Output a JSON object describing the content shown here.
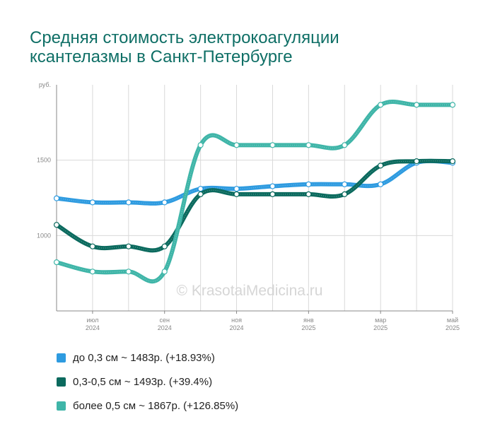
{
  "title_line1": "Средняя стоимость электрокоагуляции",
  "title_line2": "ксантелазмы в Санкт-Петербурге",
  "watermark": "© KrasotaiMedicina.ru",
  "colors": {
    "title": "#0f6f66",
    "series1": "#2e9be0",
    "series2": "#0b6a5e",
    "series3": "#3fb5a8",
    "grid": "#d9d9d9",
    "axis": "#888888"
  },
  "chart_data": {
    "type": "line",
    "title": "Средняя стоимость электрокоагуляции ксантелазмы в Санкт-Петербурге",
    "ylabel": "руб.",
    "xlabel": "",
    "ylim": [
      500,
      2000
    ],
    "grid": true,
    "legend_position": "bottom",
    "x": [
      "2024-06",
      "2024-07",
      "2024-08",
      "2024-09",
      "2024-10",
      "2024-11",
      "2024-12",
      "2025-01",
      "2025-02",
      "2025-03",
      "2025-04",
      "2025-05"
    ],
    "y_ticks": [
      {
        "value": 2000,
        "label": "руб."
      },
      {
        "value": 1500,
        "label": "1500"
      },
      {
        "value": 1000,
        "label": "1000"
      }
    ],
    "x_ticks": [
      {
        "index": 1,
        "month": "июл",
        "year": "2024"
      },
      {
        "index": 3,
        "month": "сен",
        "year": "2024"
      },
      {
        "index": 5,
        "month": "ноя",
        "year": "2024"
      },
      {
        "index": 7,
        "month": "янв",
        "year": "2025"
      },
      {
        "index": 9,
        "month": "мар",
        "year": "2025"
      },
      {
        "index": 11,
        "month": "май",
        "year": "2025"
      }
    ],
    "series": [
      {
        "name": "до 0,3 см",
        "color": "#2e9be0",
        "values": [
          1247,
          1220,
          1220,
          1220,
          1310,
          1310,
          1327,
          1340,
          1340,
          1340,
          1483,
          1483
        ]
      },
      {
        "name": "0,3-0,5 см",
        "color": "#0b6a5e",
        "values": [
          1071,
          928,
          928,
          928,
          1274,
          1274,
          1274,
          1274,
          1274,
          1464,
          1493,
          1493
        ]
      },
      {
        "name": "более 0,5 см",
        "color": "#3fb5a8",
        "values": [
          823,
          761,
          761,
          761,
          1600,
          1600,
          1600,
          1600,
          1600,
          1867,
          1867,
          1867
        ]
      }
    ]
  },
  "legend": [
    {
      "label": "до 0,3 см ~ 1483р. (+18.93%)",
      "color": "#2e9be0"
    },
    {
      "label": "0,3-0,5 см ~ 1493р. (+39.4%)",
      "color": "#0b6a5e"
    },
    {
      "label": "более 0,5 см ~ 1867р. (+126.85%)",
      "color": "#3fb5a8"
    }
  ]
}
